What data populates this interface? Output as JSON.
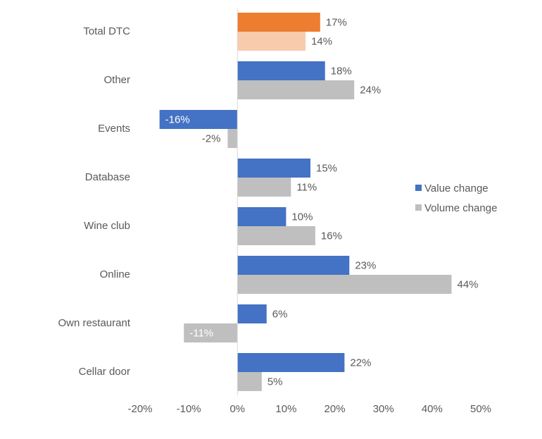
{
  "chart_data": {
    "type": "bar",
    "orientation": "horizontal",
    "title": "",
    "xlabel": "",
    "ylabel": "",
    "xlim": [
      -20,
      50
    ],
    "x_ticks": [
      -20,
      -10,
      0,
      10,
      20,
      30,
      40,
      50
    ],
    "x_tick_labels": [
      "-20%",
      "-10%",
      "0%",
      "10%",
      "20%",
      "30%",
      "40%",
      "50%"
    ],
    "grid": false,
    "legend_position": "right",
    "legend": [
      {
        "label": "Value change",
        "color": "#4472C4"
      },
      {
        "label": "Volume change",
        "color": "#BFBFBF"
      }
    ],
    "categories": [
      "Total DTC",
      "Other",
      "Events",
      "Database",
      "Wine club",
      "Online",
      "Own restaurant",
      "Cellar door"
    ],
    "series": [
      {
        "name": "Value change",
        "color": "#4472C4",
        "highlight_color": "#ED7D31",
        "values": [
          17,
          18,
          -16,
          15,
          10,
          23,
          6,
          22
        ],
        "labels": [
          "17%",
          "18%",
          "-16%",
          "15%",
          "10%",
          "23%",
          "6%",
          "22%"
        ]
      },
      {
        "name": "Volume change",
        "color": "#BFBFBF",
        "highlight_color": "#F8CBAD",
        "values": [
          14,
          24,
          -2,
          11,
          16,
          44,
          -11,
          5
        ],
        "labels": [
          "14%",
          "24%",
          "-2%",
          "11%",
          "16%",
          "44%",
          "-11%",
          "5%"
        ]
      }
    ],
    "highlighted_category": "Total DTC",
    "axis_color": "#D9D9D9",
    "label_color": "#595959",
    "inside_label_color": "#FFFFFF"
  }
}
